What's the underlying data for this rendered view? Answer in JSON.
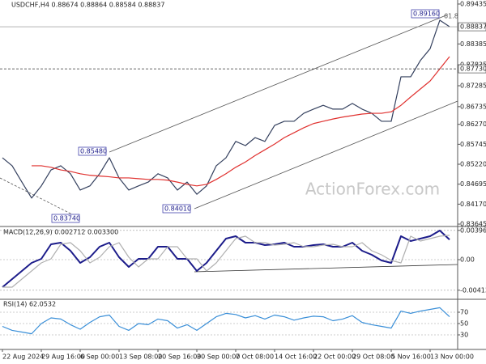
{
  "chart_data": [
    {
      "type": "line",
      "title": "USDCHF,H4 0.88674 0.88864 0.88584 0.88837",
      "categories": [
        "22 Aug 2024",
        null,
        null,
        null,
        "29 Aug 16:00",
        null,
        null,
        null,
        "6 Sep 00:00",
        null,
        null,
        null,
        "13 Sep 08:00",
        null,
        null,
        null,
        "20 Sep 16:00",
        null,
        null,
        null,
        "30 Sep 00:00",
        null,
        null,
        null,
        "7 Oct 08:00",
        null,
        null,
        null,
        "14 Oct 16:00",
        null,
        null,
        null,
        "22 Oct 00:00",
        null,
        null,
        null,
        "29 Oct 08:00",
        null,
        null,
        null,
        "5 Nov 16:00",
        null,
        null,
        null,
        "13 Nov 00:00",
        null,
        null
      ],
      "series": [
        {
          "name": "USDCHF",
          "color": "#34405e",
          "values": [
            0.8539,
            0.8518,
            0.8475,
            0.8433,
            0.8465,
            0.8507,
            0.8518,
            0.8497,
            0.8454,
            0.8465,
            0.8497,
            0.8539,
            0.8486,
            0.8454,
            0.8465,
            0.8475,
            0.8497,
            0.8486,
            0.8454,
            0.8475,
            0.8443,
            0.8465,
            0.8518,
            0.8539,
            0.8582,
            0.8571,
            0.8592,
            0.8582,
            0.8624,
            0.8635,
            0.8635,
            0.8656,
            0.8667,
            0.8677,
            0.8667,
            0.8667,
            0.8682,
            0.8667,
            0.8656,
            0.8635,
            0.8635,
            0.8752,
            0.8752,
            0.8795,
            0.8826,
            0.8901,
            0.8884
          ]
        },
        {
          "name": "SMA",
          "color": "#e0312f",
          "values": [
            null,
            null,
            null,
            0.8518,
            0.8518,
            0.8514,
            0.8507,
            0.8503,
            0.8497,
            0.8493,
            0.8491,
            0.8489,
            0.8486,
            0.8486,
            0.8484,
            0.8482,
            0.8482,
            0.848,
            0.8475,
            0.8469,
            0.8465,
            0.8469,
            0.8482,
            0.8497,
            0.8514,
            0.8528,
            0.8545,
            0.856,
            0.8575,
            0.8592,
            0.8605,
            0.8618,
            0.8629,
            0.8635,
            0.8641,
            0.8646,
            0.865,
            0.8654,
            0.8656,
            0.8656,
            0.866,
            0.8677,
            0.8699,
            0.872,
            0.8741,
            0.8773,
            0.8805
          ]
        }
      ],
      "ylim": [
        0.83582,
        0.89541
      ],
      "yticks": [
        0.89435,
        0.88385,
        0.87835,
        0.87285,
        0.86735,
        {
          "value": 0.8627,
          "label": "0.86270"
        },
        0.85745,
        {
          "value": 0.8522,
          "label": "0.85220"
        },
        0.84695,
        {
          "value": 0.8417,
          "label": "0.84170"
        },
        0.83645
      ],
      "last_price": 0.88837,
      "level": {
        "value": 0.8773,
        "label": "0.87730"
      },
      "annotations": [
        "0.89160",
        "61.8",
        "0.85480",
        "0.83740",
        "0.84010"
      ],
      "watermark": "ActionForex.com"
    },
    {
      "type": "line",
      "title": "MACD(12,26,9) 0.002712 0.003300",
      "series": [
        {
          "name": "MACD",
          "color": "#1c1c8a",
          "values": [
            -0.003722,
            -0.002628,
            -0.001533,
            -0.000438,
            0.000109,
            0.00208,
            0.002299,
            0.001204,
            -0.000438,
            0.000328,
            0.001752,
            0.002299,
            0.000328,
            -0.000985,
            0.000109,
            0.000109,
            0.001752,
            0.001752,
            0.000109,
            0.000109,
            -0.001533,
            -0.000438,
            0.001204,
            0.002847,
            0.003175,
            0.002299,
            0.002299,
            0.001971,
            0.00208,
            0.002299,
            0.001752,
            0.001752,
            0.001971,
            0.00208,
            0.001752,
            0.001752,
            0.002299,
            0.001204,
            0.000657,
            -0.000109,
            -0.000438,
            0.003175,
            0.002518,
            0.002847,
            0.003175,
            0.003941,
            0.002712
          ]
        },
        {
          "name": "Signal",
          "color": "#b0b0b0",
          "values": [
            -0.003722,
            -0.003722,
            -0.002628,
            -0.001533,
            -0.000438,
            0.000109,
            0.00208,
            0.002299,
            0.001204,
            -0.000438,
            0.000328,
            0.001752,
            0.002299,
            0.000328,
            -0.000985,
            0.000109,
            0.000109,
            0.001752,
            0.001752,
            0.000109,
            0.000109,
            -0.001533,
            -0.000438,
            0.001204,
            0.002847,
            0.003175,
            0.002299,
            0.002299,
            0.001971,
            0.00208,
            0.002299,
            0.001752,
            0.001752,
            0.001971,
            0.00208,
            0.001752,
            0.001752,
            0.002299,
            0.001204,
            0.000657,
            -0.000109,
            -0.000438,
            0.003175,
            0.002518,
            0.002847,
            0.003175,
            0.0033
          ]
        }
      ],
      "ylim": [
        -0.005365,
        0.004489
      ],
      "yticks": [
        0.003965,
        {
          "value": 0,
          "label": "0.00"
        },
        -0.004136
      ]
    },
    {
      "type": "line",
      "title": "RSI(14) 62.0532",
      "series": [
        {
          "name": "RSI",
          "color": "#3a8fd8",
          "values": [
            45,
            38,
            35,
            32,
            50,
            60,
            58,
            48,
            40,
            52,
            62,
            65,
            45,
            38,
            50,
            48,
            58,
            55,
            42,
            48,
            38,
            50,
            62,
            68,
            66,
            60,
            64,
            58,
            65,
            62,
            56,
            60,
            63,
            62,
            55,
            58,
            64,
            52,
            48,
            45,
            42,
            72,
            68,
            72,
            75,
            78,
            62.0532
          ]
        }
      ],
      "ylim": [
        4.3,
        90
      ],
      "yticks": [
        70,
        50,
        30
      ]
    }
  ]
}
